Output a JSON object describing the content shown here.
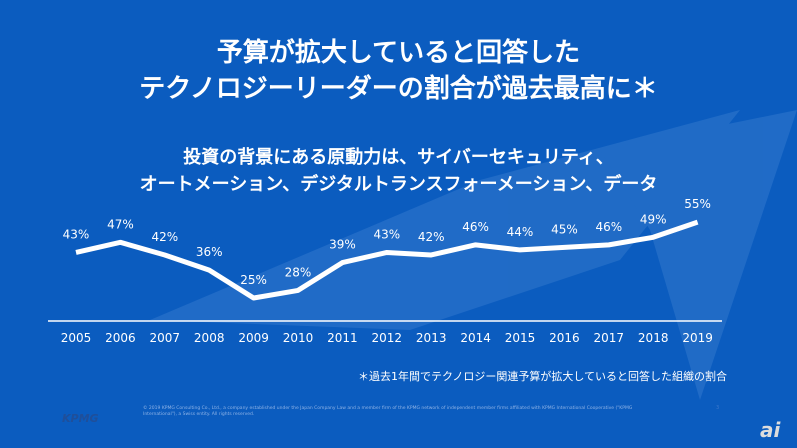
{
  "title": {
    "line1": "予算が拡大していると回答した",
    "line2": "テクノロジーリーダーの割合が過去最高に＊"
  },
  "subtitle": {
    "line1": "投資の背景にある原動力は、サイバーセキュリティ、",
    "line2": "オートメーション、デジタルトランスフォーメーション、データ"
  },
  "footnote": "＊過去1年間でテクノロジー関連予算が拡大していると回答した組織の割合",
  "footer": {
    "logo": "KPMG",
    "copyright": "© 2019 KPMG Consulting Co., Ltd., a company established under the Japan Company Law and a member firm of the KPMG network of independent member firms affiliated with KPMG International Cooperative (\"KPMG International\"), a Swiss entity. All rights reserved.",
    "page": "3",
    "watermark": "ai"
  },
  "colors": {
    "background": "#0b5cbf",
    "line": "#ffffff"
  },
  "chart_data": {
    "type": "line",
    "title": "",
    "xlabel": "",
    "ylabel": "",
    "categories": [
      "2005",
      "2006",
      "2007",
      "2008",
      "2009",
      "2010",
      "2011",
      "2012",
      "2013",
      "2014",
      "2015",
      "2016",
      "2017",
      "2018",
      "2019"
    ],
    "values": [
      43,
      47,
      42,
      36,
      25,
      28,
      39,
      43,
      42,
      46,
      44,
      45,
      46,
      49,
      55
    ],
    "labels": [
      "43%",
      "47%",
      "42%",
      "36%",
      "25%",
      "28%",
      "39%",
      "43%",
      "42%",
      "46%",
      "44%",
      "45%",
      "46%",
      "49%",
      "55%"
    ],
    "ylim": [
      0,
      60
    ],
    "grid": false
  }
}
